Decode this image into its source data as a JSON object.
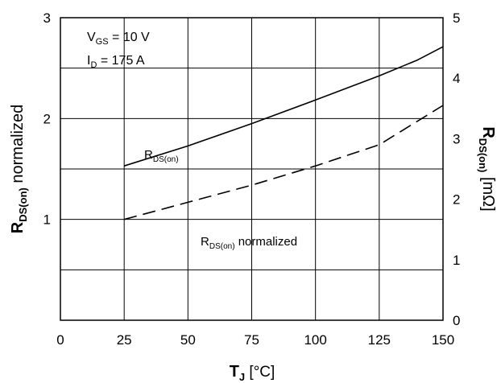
{
  "chart_data": {
    "type": "line",
    "title": "",
    "xlabel": {
      "main": "T",
      "sub": "J",
      "unit": "[°C]"
    },
    "ylabel_left": {
      "main": "R",
      "sub": "DS(on)",
      "rest": "normalized"
    },
    "ylabel_right": {
      "main": "R",
      "sub": "DS(on)",
      "unit": "[mΩ]"
    },
    "xlim": [
      0,
      150
    ],
    "ylim_left": [
      0,
      3
    ],
    "ylim_right": [
      0,
      5
    ],
    "x_ticks": [
      0,
      25,
      50,
      75,
      100,
      125,
      150
    ],
    "y_left_ticks": [
      1,
      2,
      3
    ],
    "y_right_ticks": [
      0,
      1,
      2,
      3,
      4,
      5
    ],
    "x_tick_labels": [
      "0",
      "25",
      "50",
      "75",
      "100",
      "125",
      "150"
    ],
    "y_left_tick_labels": [
      "1",
      "2",
      "3"
    ],
    "y_right_tick_labels": [
      "0",
      "1",
      "2",
      "3",
      "4",
      "5"
    ],
    "conditions": [
      {
        "main": "V",
        "sub": "GS",
        "value": " = 10 V"
      },
      {
        "main": "I",
        "sub": "D",
        "value": " =  175 A"
      }
    ],
    "grid": true,
    "series": [
      {
        "name": {
          "main": "R",
          "sub": "DS(on)"
        },
        "axis": "right",
        "style": "solid",
        "x": [
          25,
          50,
          75,
          100,
          125,
          140,
          150
        ],
        "y": [
          2.55,
          2.88,
          3.25,
          3.64,
          4.04,
          4.3,
          4.52
        ]
      },
      {
        "name": {
          "main": "R",
          "sub": "DS(on)",
          "rest": "normalized"
        },
        "axis": "left",
        "style": "dashed",
        "x": [
          25,
          50,
          75,
          100,
          125,
          150
        ],
        "y": [
          1.0,
          1.17,
          1.34,
          1.53,
          1.74,
          2.13
        ]
      }
    ]
  }
}
